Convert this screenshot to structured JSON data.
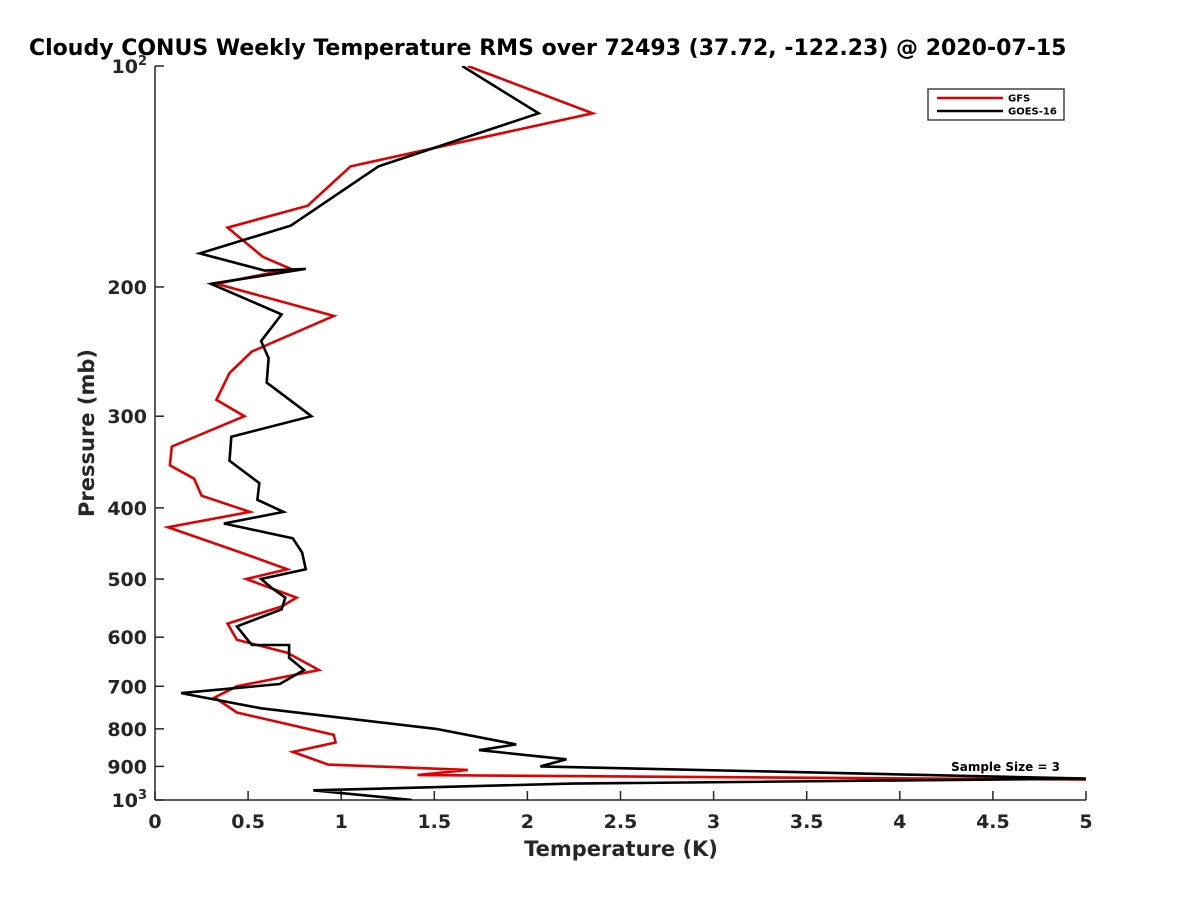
{
  "chart_data": {
    "type": "line",
    "title": "Cloudy CONUS Weekly Temperature RMS over 72493 (37.72, -122.23) @ 2020-07-15",
    "xlabel": "Temperature (K)",
    "ylabel": "Pressure (mb)",
    "xlim": [
      0,
      5
    ],
    "ylim": [
      100,
      1000
    ],
    "y_scale": "log",
    "y_reversed": true,
    "x_ticks": [
      "0",
      "0.5",
      "1",
      "1.5",
      "2",
      "2.5",
      "3",
      "3.5",
      "4",
      "4.5",
      "5"
    ],
    "y_ticks": [
      {
        "value": 100,
        "base": "10",
        "exp": "2"
      },
      {
        "value": 200,
        "label": "200"
      },
      {
        "value": 300,
        "label": "300"
      },
      {
        "value": 400,
        "label": "400"
      },
      {
        "value": 500,
        "label": "500"
      },
      {
        "value": 600,
        "label": "600"
      },
      {
        "value": 700,
        "label": "700"
      },
      {
        "value": 800,
        "label": "800"
      },
      {
        "value": 900,
        "label": "900"
      },
      {
        "value": 1000,
        "base": "10",
        "exp": "3"
      }
    ],
    "legend_position": "top-right",
    "grid": false,
    "annotation": "Sample Size = 3",
    "series": [
      {
        "name": "GFS",
        "color": "#e00000",
        "x": [
          1.68,
          2.35,
          1.05,
          0.82,
          0.39,
          0.58,
          0.73,
          0.33,
          0.96,
          0.52,
          0.4,
          0.33,
          0.48,
          0.09,
          0.08,
          0.21,
          0.25,
          0.51,
          0.07,
          0.46,
          0.71,
          0.49,
          0.76,
          0.68,
          0.39,
          0.44,
          0.71,
          0.88,
          0.44,
          0.32,
          0.44,
          0.96,
          0.97,
          0.74,
          0.93,
          1.68,
          1.41,
          5.0
        ],
        "y": [
          100,
          116,
          137,
          155,
          166,
          182,
          189,
          198,
          219,
          245,
          262,
          285,
          300,
          330,
          350,
          365,
          385,
          405,
          425,
          460,
          485,
          500,
          530,
          545,
          575,
          605,
          630,
          665,
          700,
          725,
          760,
          815,
          835,
          860,
          895,
          910,
          925,
          938
        ]
      },
      {
        "name": "GOES-16",
        "color": "#000000",
        "x": [
          1.65,
          2.06,
          1.2,
          0.73,
          0.24,
          0.59,
          0.81,
          0.3,
          0.68,
          0.57,
          0.61,
          0.6,
          0.84,
          0.41,
          0.4,
          0.56,
          0.55,
          0.69,
          0.37,
          0.74,
          0.79,
          0.81,
          0.57,
          0.63,
          0.7,
          0.68,
          0.44,
          0.52,
          0.72,
          0.72,
          0.8,
          0.67,
          0.14,
          0.57,
          1.51,
          1.94,
          1.74,
          2.21,
          2.07,
          5.0,
          2.24,
          0.85,
          1.38
        ],
        "y": [
          100,
          116,
          137,
          165,
          180,
          190,
          189,
          198,
          218,
          237,
          250,
          270,
          300,
          320,
          345,
          370,
          390,
          405,
          420,
          440,
          460,
          485,
          500,
          515,
          530,
          550,
          580,
          615,
          615,
          640,
          665,
          695,
          715,
          750,
          800,
          840,
          855,
          880,
          900,
          935,
          950,
          970,
          1000
        ]
      }
    ]
  }
}
